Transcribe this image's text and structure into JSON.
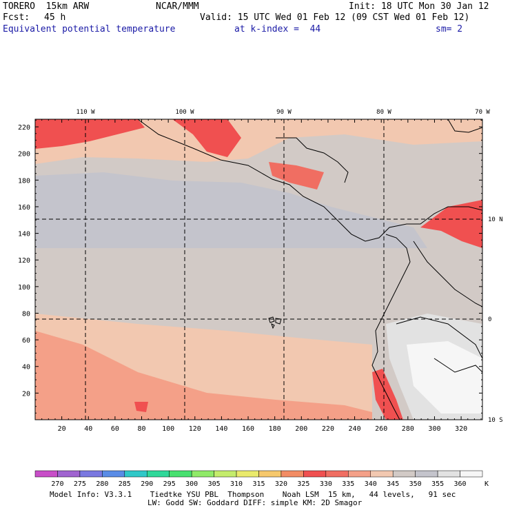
{
  "header": {
    "model": "TORERO  15km ARW",
    "org": "NCAR/MMM",
    "init": "Init: 18 UTC Mon 30 Jan 12",
    "fcst_label": "Fcst:",
    "fcst_value": "45 h",
    "valid": "Valid: 15 UTC Wed 01 Feb 12 (09 CST Wed 01 Feb 12)",
    "field": "Equivalent potential temperature",
    "level": "at k-index =  44",
    "smooth": "sm= 2"
  },
  "map": {
    "lon_labels": [
      "110 W",
      "100 W",
      "90 W",
      "80 W",
      "70 W"
    ],
    "lat_labels": [
      "10 N",
      "0",
      "10 S"
    ],
    "y_ticks": [
      "220",
      "200",
      "180",
      "160",
      "140",
      "120",
      "100",
      "80",
      "60",
      "40",
      "20"
    ],
    "x_ticks": [
      "20",
      "40",
      "60",
      "80",
      "100",
      "120",
      "140",
      "160",
      "180",
      "200",
      "220",
      "240",
      "260",
      "280",
      "300",
      "320"
    ]
  },
  "colorbar": {
    "values": [
      "270",
      "275",
      "280",
      "285",
      "290",
      "295",
      "300",
      "305",
      "310",
      "315",
      "320",
      "325",
      "330",
      "335",
      "340",
      "345",
      "350",
      "355",
      "360"
    ],
    "unit": "K",
    "colors": [
      "#c84ec8",
      "#a064d0",
      "#7a78e0",
      "#5a8ce6",
      "#30c8c8",
      "#30d89a",
      "#48e070",
      "#90ea68",
      "#c4ec6c",
      "#eaea6c",
      "#f6c86c",
      "#f28c64",
      "#f05050",
      "#f06e62",
      "#f4a088",
      "#f2c8b0",
      "#d2cac6",
      "#c4c4cc",
      "#e2e2e2",
      "#f6f6f6"
    ]
  },
  "footer": {
    "line1": "Model Info: V3.3.1    Tiedtke YSU PBL  Thompson    Noah LSM  15 km,   44 levels,   91 sec",
    "line2": "LW: Godd SW: Goddard DIFF: simple KM: 2D Smagor"
  }
}
